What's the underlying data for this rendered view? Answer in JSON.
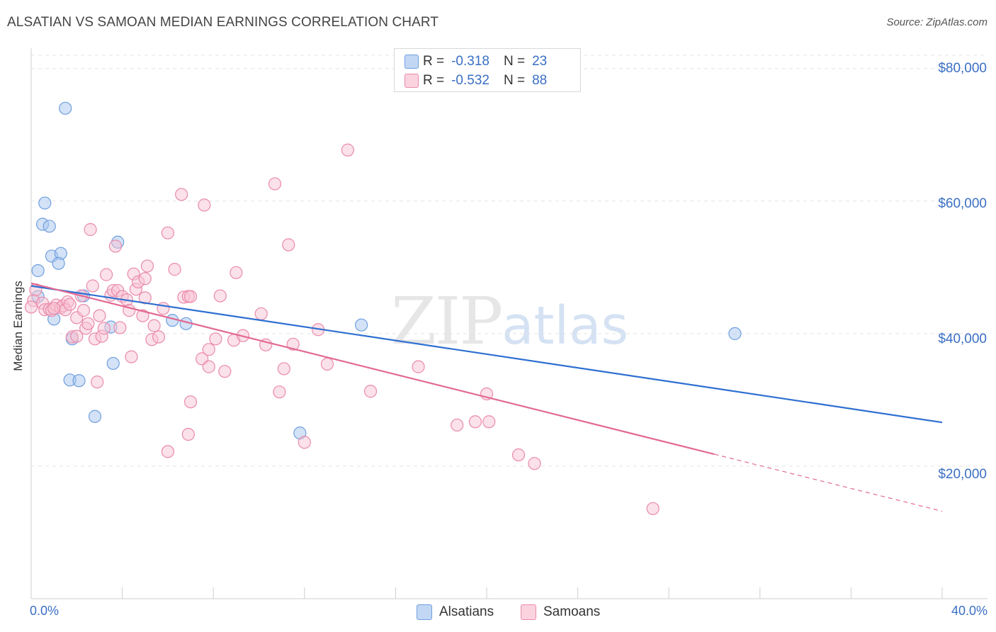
{
  "title": "ALSATIAN VS SAMOAN MEDIAN EARNINGS CORRELATION CHART",
  "source": "Source: ZipAtlas.com",
  "watermark": {
    "zip": "ZIP",
    "atlas": "atlas"
  },
  "legend": {
    "rows": [
      {
        "r_label": "R =",
        "r_value": "-0.318",
        "n_label": "N =",
        "n_value": "23",
        "color": "#a8c6ee",
        "stroke": "#6f9fe0"
      },
      {
        "r_label": "R =",
        "r_value": "-0.532",
        "n_label": "N =",
        "n_value": "88",
        "color": "#f7c3d3",
        "stroke": "#ea8aab"
      }
    ]
  },
  "bottom_legend": [
    "Alsatians",
    "Samoans"
  ],
  "chart_data": {
    "type": "scatter",
    "title": "ALSATIAN VS SAMOAN MEDIAN EARNINGS CORRELATION CHART",
    "xlabel": "",
    "ylabel": "Median Earnings",
    "xlim": [
      0,
      40
    ],
    "ylim": [
      0,
      82000
    ],
    "x_tick_labels": [
      "0.0%",
      "40.0%"
    ],
    "y_ticks": [
      20000,
      40000,
      60000,
      80000
    ],
    "y_tick_labels": [
      "$20,000",
      "$40,000",
      "$60,000",
      "$80,000"
    ],
    "grid": true,
    "series": [
      {
        "name": "Alsatians",
        "color": "#6f9fe0",
        "fill": "#a8c6ee",
        "points": [
          [
            0.3,
            45600
          ],
          [
            0.3,
            49500
          ],
          [
            0.6,
            59700
          ],
          [
            0.5,
            56500
          ],
          [
            0.8,
            56200
          ],
          [
            0.9,
            51700
          ],
          [
            1.3,
            52100
          ],
          [
            1.2,
            50600
          ],
          [
            1.5,
            74000
          ],
          [
            1.0,
            42200
          ],
          [
            1.8,
            39200
          ],
          [
            2.3,
            45700
          ],
          [
            1.7,
            33000
          ],
          [
            2.1,
            32900
          ],
          [
            2.8,
            27500
          ],
          [
            3.8,
            53800
          ],
          [
            3.5,
            41000
          ],
          [
            3.6,
            35500
          ],
          [
            6.2,
            42000
          ],
          [
            6.8,
            41500
          ],
          [
            11.8,
            25000
          ],
          [
            14.5,
            41300
          ],
          [
            30.9,
            40000
          ]
        ],
        "trend": {
          "x": [
            0,
            40
          ],
          "y": [
            47200,
            26600
          ]
        }
      },
      {
        "name": "Samoans",
        "color": "#ea8aab",
        "fill": "#f7c3d3",
        "points": [
          [
            0.1,
            45000
          ],
          [
            0.2,
            46600
          ],
          [
            0.5,
            44600
          ],
          [
            0.6,
            43600
          ],
          [
            0.8,
            43700
          ],
          [
            0.9,
            43500
          ],
          [
            1.1,
            44300
          ],
          [
            1.3,
            43900
          ],
          [
            1.4,
            44200
          ],
          [
            1.6,
            44800
          ],
          [
            1.5,
            43600
          ],
          [
            1.7,
            44400
          ],
          [
            1.8,
            39500
          ],
          [
            2.0,
            39600
          ],
          [
            2.0,
            42400
          ],
          [
            2.2,
            45700
          ],
          [
            2.3,
            43500
          ],
          [
            2.4,
            40800
          ],
          [
            2.5,
            41500
          ],
          [
            2.6,
            55700
          ],
          [
            2.7,
            47200
          ],
          [
            2.8,
            39200
          ],
          [
            2.9,
            32700
          ],
          [
            3.0,
            42700
          ],
          [
            3.1,
            39600
          ],
          [
            3.2,
            40800
          ],
          [
            3.3,
            48900
          ],
          [
            3.5,
            45800
          ],
          [
            3.6,
            46500
          ],
          [
            3.7,
            53200
          ],
          [
            3.8,
            46500
          ],
          [
            3.9,
            40900
          ],
          [
            4.0,
            45600
          ],
          [
            4.2,
            45100
          ],
          [
            4.3,
            43500
          ],
          [
            4.4,
            36500
          ],
          [
            4.5,
            49000
          ],
          [
            4.6,
            46700
          ],
          [
            4.7,
            47800
          ],
          [
            4.9,
            42700
          ],
          [
            5.0,
            45400
          ],
          [
            5.0,
            48300
          ],
          [
            5.1,
            50200
          ],
          [
            5.3,
            39100
          ],
          [
            5.4,
            41200
          ],
          [
            5.6,
            39500
          ],
          [
            6.0,
            55200
          ],
          [
            5.8,
            43800
          ],
          [
            6.3,
            49700
          ],
          [
            6.6,
            61000
          ],
          [
            6.7,
            45500
          ],
          [
            6.9,
            45600
          ],
          [
            6.0,
            22200
          ],
          [
            6.9,
            24800
          ],
          [
            7.0,
            29700
          ],
          [
            7.0,
            45600
          ],
          [
            7.5,
            36200
          ],
          [
            7.6,
            59400
          ],
          [
            7.8,
            35000
          ],
          [
            7.8,
            37600
          ],
          [
            8.1,
            39200
          ],
          [
            8.3,
            45700
          ],
          [
            8.5,
            34300
          ],
          [
            8.9,
            39000
          ],
          [
            9.0,
            49200
          ],
          [
            9.3,
            39700
          ],
          [
            10.1,
            43000
          ],
          [
            10.3,
            38300
          ],
          [
            10.7,
            62600
          ],
          [
            10.9,
            31200
          ],
          [
            11.1,
            34700
          ],
          [
            11.3,
            53400
          ],
          [
            11.5,
            38400
          ],
          [
            12.0,
            23600
          ],
          [
            12.6,
            40600
          ],
          [
            13.0,
            35400
          ],
          [
            13.9,
            67700
          ],
          [
            14.9,
            31300
          ],
          [
            17.0,
            35000
          ],
          [
            18.7,
            26200
          ],
          [
            19.5,
            26700
          ],
          [
            20.1,
            26700
          ],
          [
            20.0,
            30900
          ],
          [
            21.4,
            21700
          ],
          [
            22.1,
            20400
          ],
          [
            27.3,
            13600
          ],
          [
            0.0,
            44000
          ],
          [
            1.0,
            43800
          ]
        ],
        "trend": {
          "x": [
            0,
            30.0
          ],
          "y": [
            47600,
            21800
          ]
        },
        "trend_dashed": {
          "x": [
            30.0,
            40
          ],
          "y": [
            21800,
            13200
          ]
        }
      }
    ]
  }
}
